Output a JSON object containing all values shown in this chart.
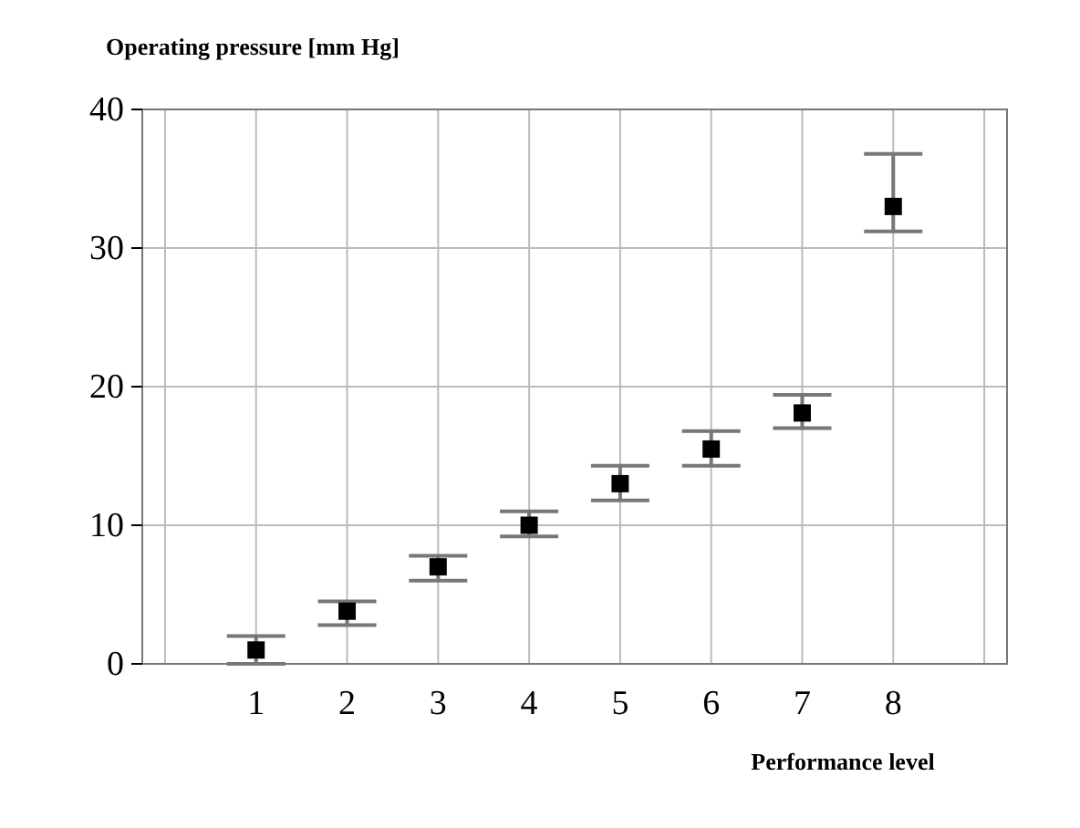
{
  "chart_data": {
    "type": "scatter",
    "xlabel": "Performance level",
    "ylabel": "Operating pressure [mm Hg]",
    "x": [
      1,
      2,
      3,
      4,
      5,
      6,
      7,
      8
    ],
    "series": [
      {
        "color": "#000000",
        "values": [
          1,
          3.8,
          7,
          10,
          13,
          15.5,
          18.1,
          33
        ],
        "errors": [
          [
            0,
            2
          ],
          [
            2.8,
            4.5
          ],
          [
            6,
            7.8
          ],
          [
            9.2,
            11
          ],
          [
            11.8,
            14.3
          ],
          [
            14.3,
            16.8
          ],
          [
            17,
            19.4
          ],
          [
            31.2,
            36.8
          ]
        ]
      }
    ],
    "xlim": [
      -0.25,
      9.25
    ],
    "xticks": [
      {
        "value": 0,
        "label": null
      },
      1,
      2,
      3,
      4,
      5,
      6,
      7,
      8,
      {
        "value": 9,
        "label": null
      }
    ],
    "ylim": [
      0,
      40
    ],
    "yticks": [
      0,
      10,
      20,
      30,
      40
    ],
    "grid": true,
    "marker": "square"
  }
}
